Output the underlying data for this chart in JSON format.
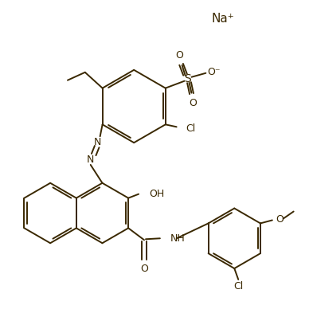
{
  "bg_color": "#ffffff",
  "line_color": "#3a2800",
  "figsize": [
    3.88,
    3.98
  ],
  "dpi": 100,
  "na_label": "Na⁺",
  "s_label": "S",
  "o_minus_label": "O⁻",
  "cl_label": "Cl",
  "oh_label": "OH",
  "nh_label": "NH",
  "o_label": "O",
  "n_label": "N",
  "meo_label": "O"
}
